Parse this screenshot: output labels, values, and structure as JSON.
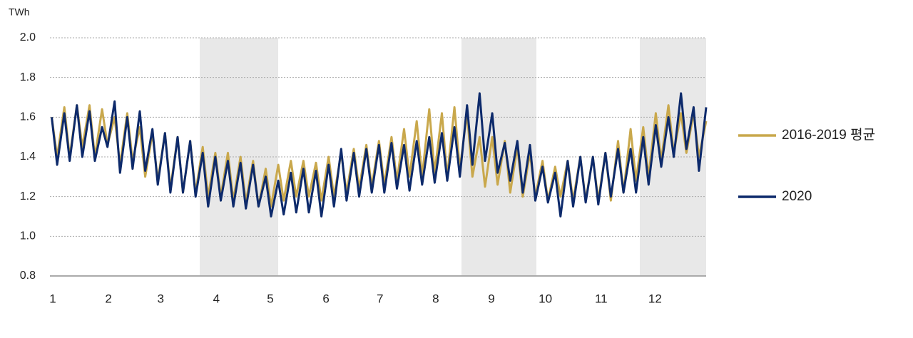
{
  "chart_data": {
    "type": "line",
    "y_label": "TWh",
    "x": [
      2,
      5,
      9,
      12,
      16,
      19,
      23,
      26,
      30,
      33,
      37,
      40,
      44,
      47,
      51,
      54,
      58,
      61,
      65,
      68,
      72,
      75,
      79,
      82,
      86,
      89,
      93,
      96,
      100,
      103,
      107,
      110,
      114,
      117,
      121,
      124,
      128,
      131,
      135,
      138,
      142,
      145,
      149,
      152,
      156,
      159,
      163,
      166,
      170,
      173,
      177,
      180,
      184,
      187,
      191,
      194,
      198,
      201,
      205,
      208,
      212,
      215,
      219,
      222,
      226,
      229,
      233,
      236,
      240,
      243,
      247,
      250,
      254,
      257,
      261,
      264,
      268,
      271,
      275,
      278,
      282,
      285,
      289,
      292,
      296,
      299,
      303,
      306,
      310,
      313,
      317,
      320,
      324,
      327,
      331,
      334,
      338,
      341,
      345,
      348,
      352,
      355,
      359,
      362,
      366
    ],
    "series": [
      {
        "name": "2016-2019 평균",
        "color": "#c9a84c",
        "values": [
          1.6,
          1.4,
          1.65,
          1.4,
          1.66,
          1.45,
          1.66,
          1.4,
          1.64,
          1.46,
          1.6,
          1.36,
          1.62,
          1.38,
          1.55,
          1.3,
          1.52,
          1.28,
          1.52,
          1.24,
          1.5,
          1.22,
          1.48,
          1.22,
          1.45,
          1.2,
          1.42,
          1.2,
          1.42,
          1.18,
          1.4,
          1.17,
          1.38,
          1.15,
          1.34,
          1.15,
          1.36,
          1.18,
          1.38,
          1.2,
          1.38,
          1.2,
          1.37,
          1.18,
          1.4,
          1.2,
          1.42,
          1.22,
          1.44,
          1.24,
          1.46,
          1.25,
          1.48,
          1.26,
          1.5,
          1.28,
          1.54,
          1.3,
          1.58,
          1.3,
          1.64,
          1.32,
          1.62,
          1.3,
          1.65,
          1.34,
          1.62,
          1.3,
          1.5,
          1.25,
          1.5,
          1.26,
          1.48,
          1.22,
          1.45,
          1.2,
          1.42,
          1.2,
          1.38,
          1.18,
          1.35,
          1.2,
          1.38,
          1.18,
          1.4,
          1.18,
          1.4,
          1.18,
          1.42,
          1.18,
          1.48,
          1.22,
          1.54,
          1.28,
          1.55,
          1.3,
          1.62,
          1.38,
          1.66,
          1.42,
          1.62,
          1.42,
          1.62,
          1.4,
          1.58
        ]
      },
      {
        "name": "2020",
        "color": "#0d2a6b",
        "values": [
          1.6,
          1.36,
          1.62,
          1.38,
          1.66,
          1.4,
          1.63,
          1.38,
          1.55,
          1.45,
          1.68,
          1.32,
          1.6,
          1.34,
          1.63,
          1.33,
          1.54,
          1.26,
          1.52,
          1.22,
          1.5,
          1.22,
          1.48,
          1.2,
          1.42,
          1.15,
          1.4,
          1.18,
          1.38,
          1.15,
          1.37,
          1.14,
          1.36,
          1.15,
          1.3,
          1.1,
          1.28,
          1.11,
          1.32,
          1.12,
          1.34,
          1.12,
          1.33,
          1.1,
          1.36,
          1.15,
          1.44,
          1.18,
          1.42,
          1.2,
          1.44,
          1.22,
          1.46,
          1.22,
          1.47,
          1.24,
          1.46,
          1.23,
          1.48,
          1.26,
          1.5,
          1.27,
          1.52,
          1.28,
          1.55,
          1.3,
          1.66,
          1.36,
          1.72,
          1.38,
          1.62,
          1.32,
          1.47,
          1.28,
          1.48,
          1.22,
          1.46,
          1.18,
          1.35,
          1.17,
          1.32,
          1.1,
          1.38,
          1.15,
          1.4,
          1.17,
          1.4,
          1.16,
          1.42,
          1.2,
          1.44,
          1.22,
          1.44,
          1.22,
          1.5,
          1.26,
          1.56,
          1.35,
          1.6,
          1.4,
          1.72,
          1.44,
          1.65,
          1.33,
          1.65
        ]
      }
    ],
    "xlim": [
      1,
      366
    ],
    "xticks": [
      1,
      {
        "value": 32,
        "label": "2"
      },
      {
        "value": 61,
        "label": "3"
      },
      {
        "value": 92,
        "label": "4"
      },
      {
        "value": 122,
        "label": "5"
      },
      {
        "value": 153,
        "label": "6"
      },
      {
        "value": 183,
        "label": "7"
      },
      {
        "value": 214,
        "label": "8"
      },
      {
        "value": 245,
        "label": "9"
      },
      {
        "value": 275,
        "label": "10"
      },
      {
        "value": 306,
        "label": "11"
      },
      {
        "value": 336,
        "label": "12"
      }
    ],
    "ylim": [
      0.8,
      2.0
    ],
    "yticks": [
      0.8,
      {
        "value": 1.0,
        "label": "1.0"
      },
      1.2,
      1.4,
      1.6,
      1.8,
      {
        "value": 2.0,
        "label": "2.0"
      }
    ],
    "grid": true,
    "legend": "right"
  }
}
